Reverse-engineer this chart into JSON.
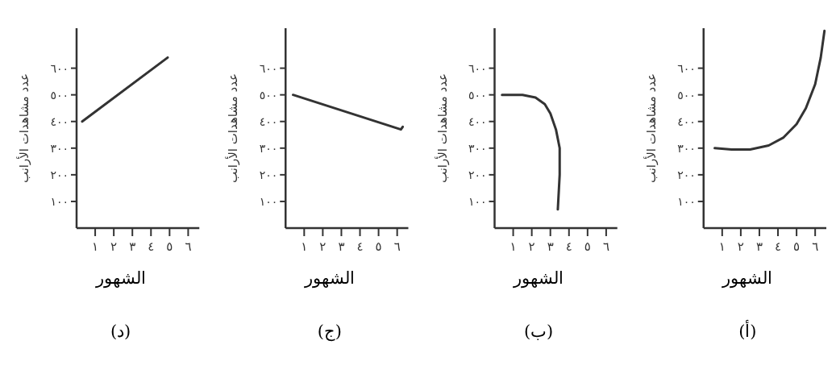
{
  "chart_data": [
    {
      "type": "line",
      "xlabel": "الشهور",
      "ylabel": "عدد مشاهدات الأرانب",
      "annotations": [
        "(أ)"
      ],
      "xlim": [
        0,
        6.6
      ],
      "ylim": [
        0,
        750
      ],
      "xticks": [
        {
          "value": 1,
          "label": "١"
        },
        {
          "value": 2,
          "label": "٢"
        },
        {
          "value": 3,
          "label": "٣"
        },
        {
          "value": 4,
          "label": "٤"
        },
        {
          "value": 5,
          "label": "٥"
        },
        {
          "value": 6,
          "label": "٦"
        }
      ],
      "yticks": [
        {
          "value": 100,
          "label": "١٠٠"
        },
        {
          "value": 200,
          "label": "٢٠٠"
        },
        {
          "value": 300,
          "label": "٣٠٠"
        },
        {
          "value": 400,
          "label": "٤٠٠"
        },
        {
          "value": 500,
          "label": "٥٠٠"
        },
        {
          "value": 600,
          "label": "٦٠٠"
        }
      ],
      "grid": false,
      "marker": "none",
      "line_style": "solid",
      "series": [
        {
          "color": "#333333",
          "x": [
            0.6,
            1.5,
            2.5,
            3.5,
            4.3,
            5,
            5.5,
            6,
            6.3,
            6.5
          ],
          "values": [
            300,
            295,
            295,
            310,
            340,
            390,
            450,
            540,
            640,
            740
          ]
        }
      ]
    },
    {
      "type": "line",
      "xlabel": "الشهور",
      "ylabel": "عدد مشاهدات الأرانب",
      "annotations": [
        "(ب)"
      ],
      "xlim": [
        0,
        6.6
      ],
      "ylim": [
        0,
        750
      ],
      "xticks": [
        {
          "value": 1,
          "label": "١"
        },
        {
          "value": 2,
          "label": "٢"
        },
        {
          "value": 3,
          "label": "٣"
        },
        {
          "value": 4,
          "label": "٤"
        },
        {
          "value": 5,
          "label": "٥"
        },
        {
          "value": 6,
          "label": "٦"
        }
      ],
      "yticks": [
        {
          "value": 100,
          "label": "١٠٠"
        },
        {
          "value": 200,
          "label": "٢٠٠"
        },
        {
          "value": 300,
          "label": "٣٠٠"
        },
        {
          "value": 400,
          "label": "٤٠٠"
        },
        {
          "value": 500,
          "label": "٥٠٠"
        },
        {
          "value": 600,
          "label": "٦٠٠"
        }
      ],
      "grid": false,
      "marker": "none",
      "line_style": "solid",
      "series": [
        {
          "color": "#333333",
          "x": [
            0.4,
            1.5,
            2.2,
            2.7,
            3.0,
            3.3,
            3.5,
            3.5,
            3.4
          ],
          "values": [
            500,
            500,
            490,
            465,
            430,
            370,
            300,
            200,
            70
          ]
        }
      ]
    },
    {
      "type": "line",
      "xlabel": "الشهور",
      "ylabel": "عدد مشاهدات الأرانب",
      "annotations": [
        "(ج)"
      ],
      "xlim": [
        0,
        6.6
      ],
      "ylim": [
        0,
        750
      ],
      "xticks": [
        {
          "value": 1,
          "label": "١"
        },
        {
          "value": 2,
          "label": "٢"
        },
        {
          "value": 3,
          "label": "٣"
        },
        {
          "value": 4,
          "label": "٤"
        },
        {
          "value": 5,
          "label": "٥"
        },
        {
          "value": 6,
          "label": "٦"
        }
      ],
      "yticks": [
        {
          "value": 100,
          "label": "١٠٠"
        },
        {
          "value": 200,
          "label": "٢٠٠"
        },
        {
          "value": 300,
          "label": "٣٠٠"
        },
        {
          "value": 400,
          "label": "٤٠٠"
        },
        {
          "value": 500,
          "label": "٥٠٠"
        },
        {
          "value": 600,
          "label": "٦٠٠"
        }
      ],
      "grid": false,
      "marker": "none",
      "line_style": "solid",
      "series": [
        {
          "color": "#333333",
          "x": [
            0.4,
            6.2,
            6.3
          ],
          "values": [
            500,
            370,
            380
          ]
        }
      ]
    },
    {
      "type": "line",
      "xlabel": "الشهور",
      "ylabel": "عدد مشاهدات الأرانب",
      "annotations": [
        "(د)"
      ],
      "xlim": [
        0,
        6.6
      ],
      "ylim": [
        0,
        750
      ],
      "xticks": [
        {
          "value": 1,
          "label": "١"
        },
        {
          "value": 2,
          "label": "٢"
        },
        {
          "value": 3,
          "label": "٣"
        },
        {
          "value": 4,
          "label": "٤"
        },
        {
          "value": 5,
          "label": "٥"
        },
        {
          "value": 6,
          "label": "٦"
        }
      ],
      "yticks": [
        {
          "value": 100,
          "label": "١٠٠"
        },
        {
          "value": 200,
          "label": "٢٠٠"
        },
        {
          "value": 300,
          "label": "٣٠٠"
        },
        {
          "value": 400,
          "label": "٤٠٠"
        },
        {
          "value": 500,
          "label": "٥٠٠"
        },
        {
          "value": 600,
          "label": "٦٠٠"
        }
      ],
      "grid": false,
      "marker": "none",
      "line_style": "solid",
      "series": [
        {
          "color": "#333333",
          "x": [
            0.3,
            4.9
          ],
          "values": [
            400,
            640
          ]
        }
      ]
    }
  ]
}
